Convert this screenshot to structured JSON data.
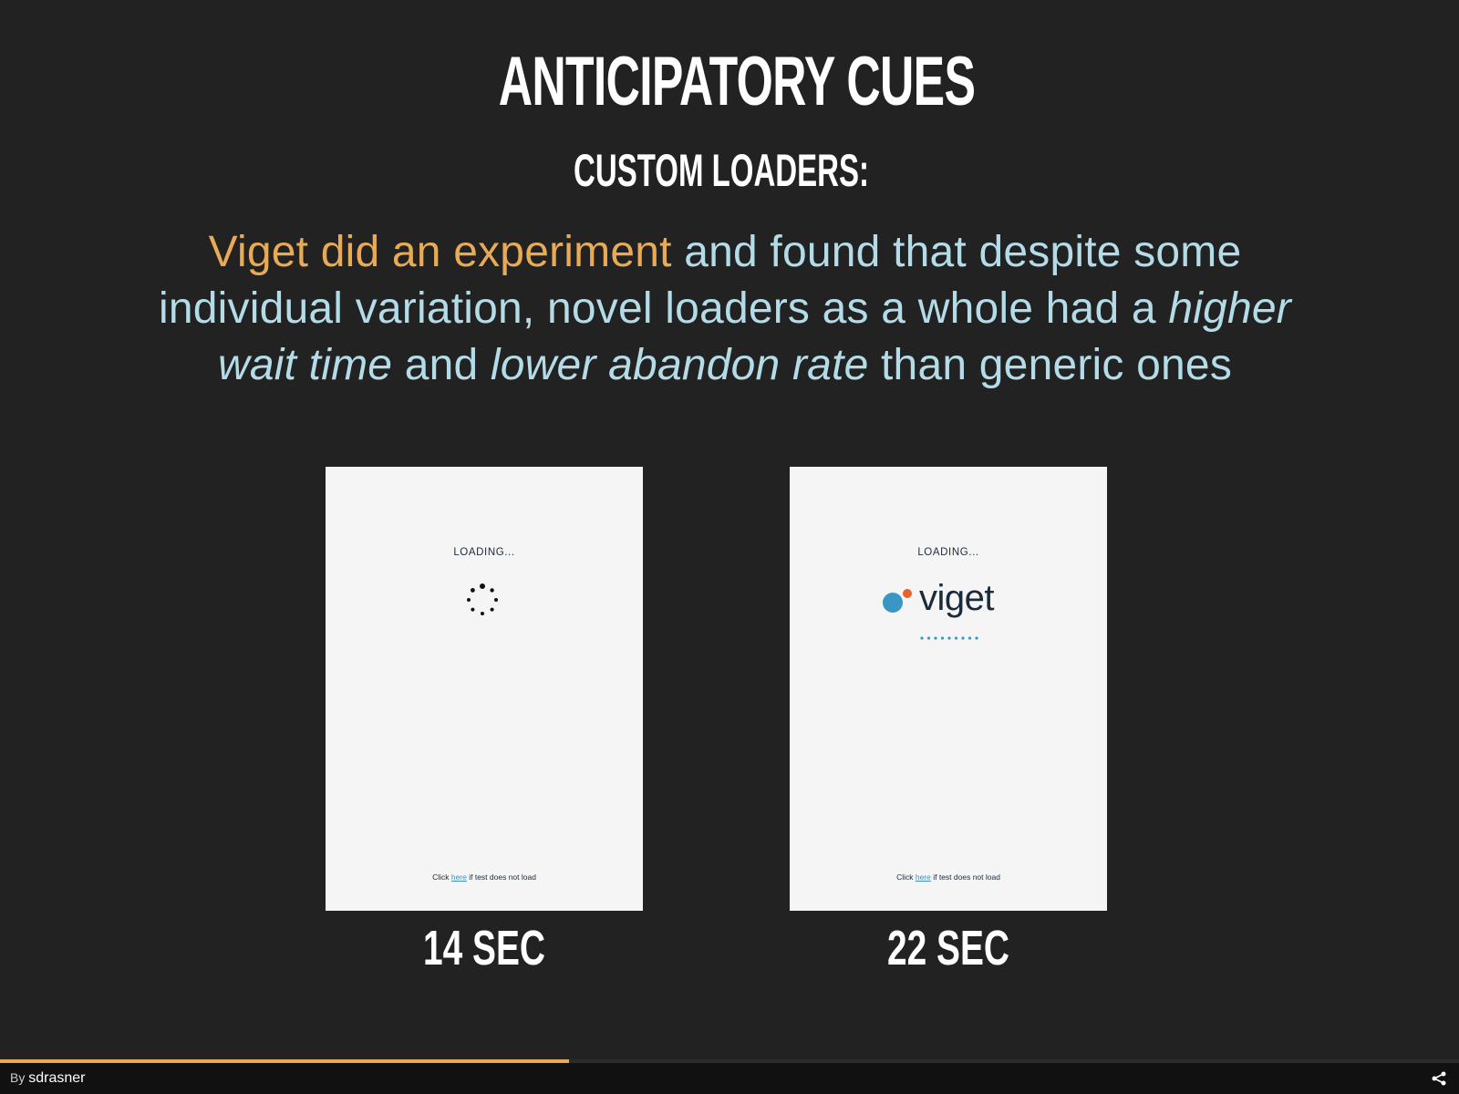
{
  "slide": {
    "title": "ANTICIPATORY CUES",
    "subtitle": "CUSTOM LOADERS:",
    "body": {
      "highlight": "Viget did an experiment",
      "part1": " and found that despite some individual variation, novel loaders as a whole had a ",
      "emphasis1": "higher wait time",
      "part2": " and ",
      "emphasis2": "lower abandon rate",
      "part3": " than generic ones"
    }
  },
  "cards": [
    {
      "loading_text": "LOADING...",
      "loader": "generic-spinner-icon",
      "foot_before": "Click ",
      "foot_link": "here",
      "foot_after": " if test does not load",
      "time": "14 SEC"
    },
    {
      "loading_text": "LOADING...",
      "loader": "viget-logo",
      "logo_word": "viget",
      "foot_before": "Click ",
      "foot_link": "here",
      "foot_after": " if test does not load",
      "time": "22 SEC"
    }
  ],
  "presentation": {
    "progress": 0.39,
    "by_label": "By",
    "author": "sdrasner"
  },
  "colors": {
    "background": "#222222",
    "accent": "#e8aa55",
    "body_text": "#b3dce8",
    "logo_blue": "#3a97c4",
    "logo_orange": "#e8602c"
  }
}
